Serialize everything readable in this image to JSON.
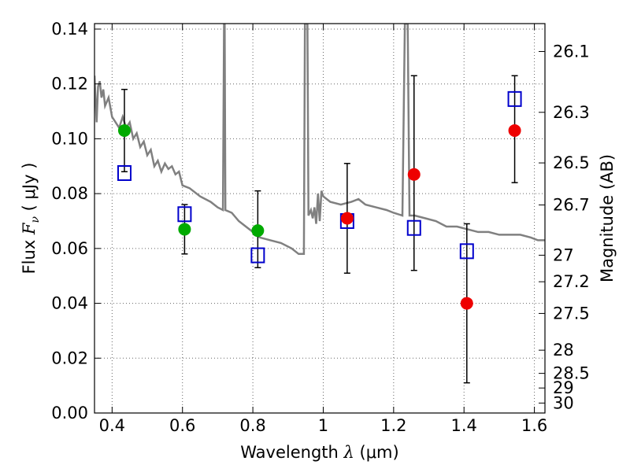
{
  "chart_data": {
    "type": "scatter",
    "xlabel": "Wavelength  λ (μm)",
    "ylabel": "Flux  F_ν  ( μJy )",
    "ylabel_parts": {
      "prefix": "Flux ",
      "symbol": "F",
      "sub": "ν",
      "units": "  ( μJy )"
    },
    "xlabel_parts": {
      "prefix": "Wavelength ",
      "symbol": " λ",
      "units": " (μm)"
    },
    "y2label": "Magnitude (AB)",
    "xlim": [
      0.35,
      1.63
    ],
    "ylim": [
      0.0,
      0.142
    ],
    "grid": true,
    "x_ticks": [
      {
        "value": 0.4,
        "label": "0.4"
      },
      {
        "value": 0.6,
        "label": "0.6"
      },
      {
        "value": 0.8,
        "label": "0.8"
      },
      {
        "value": 1.0,
        "label": "1"
      },
      {
        "value": 1.2,
        "label": "1.2"
      },
      {
        "value": 1.4,
        "label": "1.4"
      },
      {
        "value": 1.6,
        "label": "1.6"
      }
    ],
    "y_ticks": [
      {
        "value": 0.0,
        "label": "0.00"
      },
      {
        "value": 0.02,
        "label": "0.02"
      },
      {
        "value": 0.04,
        "label": "0.04"
      },
      {
        "value": 0.06,
        "label": "0.06"
      },
      {
        "value": 0.08,
        "label": "0.08"
      },
      {
        "value": 0.1,
        "label": "0.10"
      },
      {
        "value": 0.12,
        "label": "0.12"
      },
      {
        "value": 0.14,
        "label": "0.14"
      }
    ],
    "magnitude_ticks": [
      {
        "mag": 26.1,
        "label": "26.1"
      },
      {
        "mag": 26.3,
        "label": "26.3"
      },
      {
        "mag": 26.5,
        "label": "26.5"
      },
      {
        "mag": 26.7,
        "label": "26.7"
      },
      {
        "mag": 27.0,
        "label": "27"
      },
      {
        "mag": 27.2,
        "label": "27.2"
      },
      {
        "mag": 27.5,
        "label": "27.5"
      },
      {
        "mag": 28.0,
        "label": "28"
      },
      {
        "mag": 28.5,
        "label": "28.5"
      },
      {
        "mag": 29.0,
        "label": "29"
      },
      {
        "mag": 30.0,
        "label": "30"
      }
    ],
    "series": [
      {
        "kind": "template",
        "color": "#808080",
        "points": [
          [
            0.35,
            0.123
          ],
          [
            0.356,
            0.106
          ],
          [
            0.36,
            0.119
          ],
          [
            0.365,
            0.121
          ],
          [
            0.37,
            0.115
          ],
          [
            0.375,
            0.118
          ],
          [
            0.38,
            0.112
          ],
          [
            0.39,
            0.115
          ],
          [
            0.4,
            0.108
          ],
          [
            0.41,
            0.106
          ],
          [
            0.42,
            0.104
          ],
          [
            0.43,
            0.108
          ],
          [
            0.44,
            0.104
          ],
          [
            0.45,
            0.106
          ],
          [
            0.46,
            0.1
          ],
          [
            0.47,
            0.102
          ],
          [
            0.48,
            0.097
          ],
          [
            0.49,
            0.099
          ],
          [
            0.5,
            0.094
          ],
          [
            0.51,
            0.096
          ],
          [
            0.52,
            0.09
          ],
          [
            0.53,
            0.092
          ],
          [
            0.54,
            0.088
          ],
          [
            0.55,
            0.091
          ],
          [
            0.56,
            0.089
          ],
          [
            0.57,
            0.09
          ],
          [
            0.58,
            0.087
          ],
          [
            0.59,
            0.088
          ],
          [
            0.6,
            0.083
          ],
          [
            0.62,
            0.082
          ],
          [
            0.65,
            0.079
          ],
          [
            0.68,
            0.077
          ],
          [
            0.7,
            0.075
          ],
          [
            0.715,
            0.074
          ],
          [
            0.718,
            0.142
          ],
          [
            0.72,
            0.142
          ],
          [
            0.722,
            0.074
          ],
          [
            0.74,
            0.073
          ],
          [
            0.76,
            0.07
          ],
          [
            0.78,
            0.068
          ],
          [
            0.8,
            0.066
          ],
          [
            0.82,
            0.064
          ],
          [
            0.85,
            0.063
          ],
          [
            0.88,
            0.062
          ],
          [
            0.91,
            0.06
          ],
          [
            0.93,
            0.058
          ],
          [
            0.945,
            0.058
          ],
          [
            0.948,
            0.142
          ],
          [
            0.955,
            0.142
          ],
          [
            0.958,
            0.072
          ],
          [
            0.965,
            0.074
          ],
          [
            0.97,
            0.071
          ],
          [
            0.975,
            0.075
          ],
          [
            0.98,
            0.069
          ],
          [
            0.985,
            0.08
          ],
          [
            0.99,
            0.07
          ],
          [
            0.995,
            0.081
          ],
          [
            1.0,
            0.079
          ],
          [
            1.02,
            0.077
          ],
          [
            1.05,
            0.076
          ],
          [
            1.08,
            0.077
          ],
          [
            1.1,
            0.078
          ],
          [
            1.12,
            0.076
          ],
          [
            1.15,
            0.075
          ],
          [
            1.18,
            0.074
          ],
          [
            1.2,
            0.073
          ],
          [
            1.225,
            0.072
          ],
          [
            1.232,
            0.142
          ],
          [
            1.24,
            0.142
          ],
          [
            1.245,
            0.072
          ],
          [
            1.26,
            0.072
          ],
          [
            1.29,
            0.071
          ],
          [
            1.32,
            0.07
          ],
          [
            1.35,
            0.068
          ],
          [
            1.38,
            0.068
          ],
          [
            1.41,
            0.067
          ],
          [
            1.44,
            0.066
          ],
          [
            1.47,
            0.066
          ],
          [
            1.5,
            0.065
          ],
          [
            1.53,
            0.065
          ],
          [
            1.56,
            0.065
          ],
          [
            1.59,
            0.064
          ],
          [
            1.61,
            0.063
          ],
          [
            1.63,
            0.063
          ]
        ]
      },
      {
        "kind": "observed",
        "color": "#00aa00",
        "points": [
          {
            "x": 0.435,
            "y": 0.103,
            "yerr_low": 0.088,
            "yerr_high": 0.118
          },
          {
            "x": 0.606,
            "y": 0.067,
            "yerr_low": 0.058,
            "yerr_high": 0.076
          },
          {
            "x": 0.814,
            "y": 0.0665,
            "yerr_low": 0.053,
            "yerr_high": 0.081
          }
        ]
      },
      {
        "kind": "observed",
        "color": "#ee0000",
        "points": [
          {
            "x": 1.068,
            "y": 0.071,
            "yerr_low": 0.051,
            "yerr_high": 0.091
          },
          {
            "x": 1.258,
            "y": 0.087,
            "yerr_low": 0.052,
            "yerr_high": 0.123
          },
          {
            "x": 1.408,
            "y": 0.04,
            "yerr_low": 0.011,
            "yerr_high": 0.069
          },
          {
            "x": 1.544,
            "y": 0.103,
            "yerr_low": 0.084,
            "yerr_high": 0.123
          }
        ]
      },
      {
        "kind": "model",
        "color": "#0000cc",
        "points": [
          {
            "x": 0.435,
            "y": 0.0875
          },
          {
            "x": 0.606,
            "y": 0.0725
          },
          {
            "x": 0.814,
            "y": 0.0575
          },
          {
            "x": 1.068,
            "y": 0.07
          },
          {
            "x": 1.258,
            "y": 0.0675
          },
          {
            "x": 1.408,
            "y": 0.059
          },
          {
            "x": 1.544,
            "y": 0.1145
          }
        ]
      }
    ]
  }
}
